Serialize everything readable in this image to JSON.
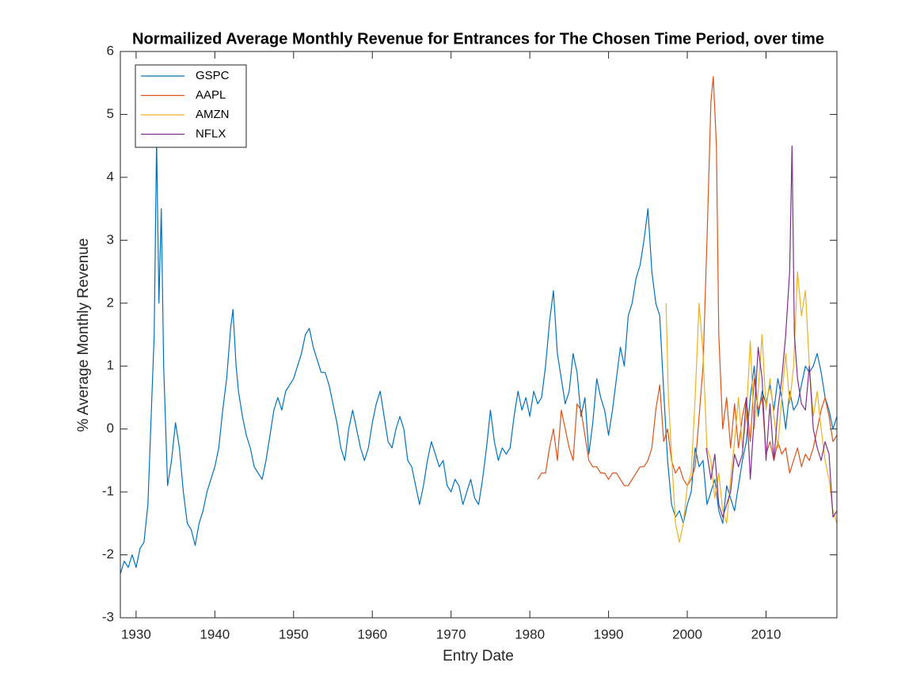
{
  "chart_data": {
    "type": "line",
    "title": "Normailized Average Monthly Revenue for Entrances for The Chosen Time Period, over time",
    "xlabel": "Entry Date",
    "ylabel": "% Average Monthly Revenue",
    "xlim": [
      1928,
      2019
    ],
    "ylim": [
      -3,
      6
    ],
    "xticks": [
      1930,
      1940,
      1950,
      1960,
      1970,
      1980,
      1990,
      2000,
      2010
    ],
    "yticks": [
      -3,
      -2,
      -1,
      0,
      1,
      2,
      3,
      4,
      5,
      6
    ],
    "legend": "upper-left",
    "series": [
      {
        "name": "GSPC",
        "color": "#0072BD",
        "x": [
          1928,
          1928.5,
          1929,
          1929.5,
          1930,
          1930.5,
          1931,
          1931.5,
          1932,
          1932.3,
          1932.6,
          1932.9,
          1933.2,
          1933.5,
          1934,
          1934.5,
          1935,
          1935.5,
          1936,
          1936.5,
          1937,
          1937.5,
          1938,
          1938.5,
          1939,
          1939.5,
          1940,
          1940.5,
          1941,
          1941.5,
          1942,
          1942.3,
          1942.7,
          1943,
          1943.5,
          1944,
          1944.5,
          1945,
          1945.5,
          1946,
          1946.5,
          1947,
          1947.5,
          1948,
          1948.5,
          1949,
          1949.5,
          1950,
          1950.5,
          1951,
          1951.5,
          1952,
          1952.5,
          1953,
          1953.5,
          1954,
          1954.5,
          1955,
          1955.5,
          1956,
          1956.5,
          1957,
          1957.5,
          1958,
          1958.5,
          1959,
          1959.5,
          1960,
          1960.5,
          1961,
          1961.5,
          1962,
          1962.5,
          1963,
          1963.5,
          1964,
          1964.5,
          1965,
          1965.5,
          1966,
          1966.5,
          1967,
          1967.5,
          1968,
          1968.5,
          1969,
          1969.5,
          1970,
          1970.5,
          1971,
          1971.5,
          1972,
          1972.5,
          1973,
          1973.5,
          1974,
          1974.5,
          1975,
          1975.5,
          1976,
          1976.5,
          1977,
          1977.5,
          1978,
          1978.5,
          1979,
          1979.5,
          1980,
          1980.5,
          1981,
          1981.5,
          1982,
          1982.5,
          1983,
          1983.5,
          1984,
          1984.5,
          1985,
          1985.5,
          1986,
          1986.5,
          1987,
          1987.5,
          1988,
          1988.5,
          1989,
          1989.5,
          1990,
          1990.5,
          1991,
          1991.5,
          1992,
          1992.5,
          1993,
          1993.5,
          1994,
          1994.5,
          1995,
          1995.5,
          1996,
          1996.5,
          1997,
          1997.5,
          1998,
          1998.5,
          1999,
          1999.5,
          2000,
          2000.5,
          2001,
          2001.5,
          2002,
          2002.5,
          2003,
          2003.5,
          2004,
          2004.5,
          2005,
          2005.5,
          2006,
          2006.5,
          2007,
          2007.5,
          2008,
          2008.5,
          2009,
          2009.5,
          2010,
          2010.5,
          2011,
          2011.5,
          2012,
          2012.5,
          2013,
          2013.5,
          2014,
          2014.5,
          2015,
          2015.5,
          2016,
          2016.5,
          2017,
          2017.5,
          2018,
          2018.5,
          2019
        ],
        "values": [
          -2.3,
          -2.1,
          -2.2,
          -2.0,
          -2.2,
          -1.9,
          -1.8,
          -1.2,
          0.5,
          1.5,
          4.6,
          2.0,
          3.5,
          1.0,
          -0.9,
          -0.5,
          0.1,
          -0.3,
          -1.0,
          -1.5,
          -1.6,
          -1.85,
          -1.5,
          -1.3,
          -1.0,
          -0.8,
          -0.6,
          -0.3,
          0.3,
          0.8,
          1.6,
          1.9,
          1.0,
          0.6,
          0.2,
          -0.1,
          -0.3,
          -0.6,
          -0.7,
          -0.8,
          -0.5,
          -0.1,
          0.3,
          0.5,
          0.3,
          0.6,
          0.7,
          0.8,
          1.0,
          1.2,
          1.5,
          1.6,
          1.3,
          1.1,
          0.9,
          0.9,
          0.7,
          0.4,
          0.1,
          -0.3,
          -0.5,
          0.0,
          0.3,
          0.0,
          -0.3,
          -0.5,
          -0.3,
          0.1,
          0.4,
          0.6,
          0.2,
          -0.2,
          -0.3,
          0.0,
          0.2,
          0.0,
          -0.5,
          -0.6,
          -0.9,
          -1.2,
          -0.9,
          -0.5,
          -0.2,
          -0.4,
          -0.6,
          -0.5,
          -0.9,
          -1.0,
          -0.8,
          -0.9,
          -1.2,
          -1.0,
          -0.8,
          -1.1,
          -1.2,
          -0.8,
          -0.3,
          0.3,
          -0.2,
          -0.5,
          -0.3,
          -0.4,
          -0.3,
          0.2,
          0.6,
          0.3,
          0.5,
          0.2,
          0.6,
          0.4,
          0.5,
          1.0,
          1.7,
          2.2,
          1.2,
          0.8,
          0.4,
          0.6,
          1.2,
          0.9,
          0.2,
          0.5,
          -0.4,
          0.1,
          0.8,
          0.5,
          0.3,
          -0.1,
          0.3,
          0.8,
          1.3,
          1.0,
          1.8,
          2.0,
          2.4,
          2.6,
          3.0,
          3.5,
          2.5,
          2.0,
          1.8,
          0.6,
          -0.5,
          -1.2,
          -1.4,
          -1.3,
          -1.5,
          -1.2,
          -1.0,
          -0.3,
          -0.6,
          -0.5,
          -1.2,
          -1.0,
          -0.8,
          -1.3,
          -1.5,
          -0.9,
          -1.1,
          -1.3,
          -0.9,
          -0.5,
          -0.2,
          0.5,
          1.0,
          0.2,
          0.6,
          0.4,
          0.7,
          0.3,
          0.8,
          0.5,
          0.0,
          0.6,
          0.3,
          0.4,
          0.7,
          1.0,
          0.9,
          1.0,
          1.2,
          0.9,
          0.5,
          0.3,
          0.0,
          0.2
        ]
      },
      {
        "name": "AAPL",
        "color": "#D95319",
        "x": [
          1981,
          1981.5,
          1982,
          1982.5,
          1983,
          1983.5,
          1984,
          1984.5,
          1985,
          1985.5,
          1986,
          1986.5,
          1987,
          1987.5,
          1988,
          1988.5,
          1989,
          1989.5,
          1990,
          1990.5,
          1991,
          1991.5,
          1992,
          1992.5,
          1993,
          1993.5,
          1994,
          1994.5,
          1995,
          1995.5,
          1996,
          1996.5,
          1997,
          1997.5,
          1998,
          1998.5,
          1999,
          1999.5,
          2000,
          2000.5,
          2001,
          2001.5,
          2002,
          2002.5,
          2003,
          2003.3,
          2003.7,
          2004,
          2004.5,
          2005,
          2005.5,
          2006,
          2006.5,
          2007,
          2007.5,
          2008,
          2008.5,
          2009,
          2009.5,
          2010,
          2010.5,
          2011,
          2011.5,
          2012,
          2012.5,
          2013,
          2013.5,
          2014,
          2014.5,
          2015,
          2015.5,
          2016,
          2016.5,
          2017,
          2017.5,
          2018,
          2018.5,
          2019
        ],
        "values": [
          -0.8,
          -0.7,
          -0.7,
          -0.3,
          0.0,
          -0.5,
          0.3,
          0.0,
          -0.3,
          -0.5,
          0.4,
          0.3,
          -0.1,
          -0.5,
          -0.6,
          -0.6,
          -0.7,
          -0.7,
          -0.8,
          -0.7,
          -0.7,
          -0.8,
          -0.9,
          -0.9,
          -0.8,
          -0.7,
          -0.6,
          -0.6,
          -0.5,
          -0.3,
          0.3,
          0.7,
          -0.2,
          0.0,
          -0.5,
          -0.7,
          -0.6,
          -0.8,
          -0.9,
          -0.8,
          -0.6,
          0.2,
          1.0,
          3.0,
          5.2,
          5.6,
          4.5,
          1.5,
          0.0,
          0.5,
          -0.3,
          0.4,
          -0.3,
          0.2,
          0.5,
          -0.2,
          0.8,
          0.3,
          0.5,
          -0.4,
          -0.2,
          -0.5,
          -0.2,
          -0.4,
          -0.3,
          -0.7,
          -0.5,
          -0.3,
          -0.6,
          -0.4,
          -0.5,
          -0.3,
          0.0,
          0.3,
          0.5,
          0.2,
          -0.2,
          -0.1
        ]
      },
      {
        "name": "AMZN",
        "color": "#EDB120",
        "x": [
          1997.3,
          1997.6,
          1998,
          1998.5,
          1999,
          1999.5,
          2000,
          2000.5,
          2001,
          2001.5,
          2002,
          2002.5,
          2003,
          2003.5,
          2004,
          2004.5,
          2005,
          2005.5,
          2006,
          2006.5,
          2007,
          2007.5,
          2008,
          2008.5,
          2009,
          2009.5,
          2010,
          2010.5,
          2011,
          2011.5,
          2012,
          2012.5,
          2013,
          2013.5,
          2014,
          2014.5,
          2015,
          2015.5,
          2016,
          2016.5,
          2017,
          2017.5,
          2018,
          2018.5,
          2019
        ],
        "values": [
          2.0,
          0.5,
          -0.4,
          -1.5,
          -1.8,
          -1.5,
          -0.9,
          -0.7,
          0.5,
          2.0,
          1.2,
          -0.3,
          -0.5,
          -1.1,
          -0.7,
          -1.3,
          -1.5,
          -0.8,
          -0.2,
          0.5,
          -0.3,
          0.2,
          1.4,
          0.0,
          0.6,
          1.5,
          0.3,
          0.8,
          0.2,
          -0.3,
          0.5,
          1.2,
          0.4,
          1.0,
          2.5,
          1.8,
          2.2,
          1.0,
          0.2,
          0.6,
          0.0,
          -0.5,
          -0.8,
          -1.3,
          -1.5
        ]
      },
      {
        "name": "NFLX",
        "color": "#7E2F8E",
        "x": [
          2002.4,
          2003,
          2003.5,
          2004,
          2004.5,
          2005,
          2005.5,
          2006,
          2006.5,
          2007,
          2007.5,
          2008,
          2008.5,
          2009,
          2009.5,
          2010,
          2010.5,
          2011,
          2011.5,
          2012,
          2012.5,
          2013,
          2013.3,
          2013.6,
          2014,
          2014.5,
          2015,
          2015.5,
          2016,
          2016.5,
          2017,
          2017.5,
          2018,
          2018.5,
          2019
        ],
        "values": [
          -0.3,
          -0.8,
          -0.4,
          -1.2,
          -1.4,
          -1.2,
          -1.0,
          -0.4,
          -0.6,
          -0.4,
          0.5,
          -0.8,
          0.2,
          1.3,
          0.8,
          -0.5,
          0.4,
          -0.5,
          0.3,
          0.8,
          1.5,
          2.5,
          4.5,
          1.5,
          0.8,
          0.4,
          0.3,
          1.0,
          0.0,
          -0.3,
          -0.5,
          -0.2,
          -0.4,
          -1.4,
          -1.3
        ]
      }
    ]
  }
}
